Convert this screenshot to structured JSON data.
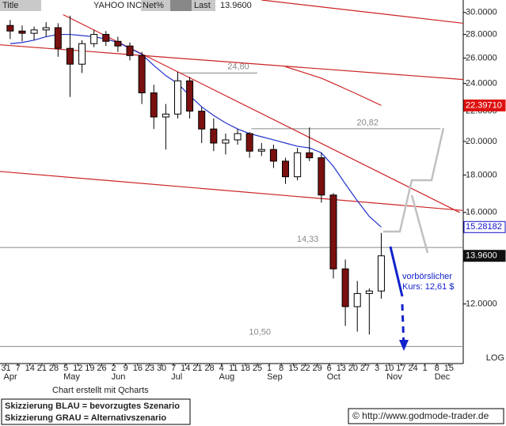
{
  "header": {
    "title": "Title",
    "symbol": "YAHOO INC",
    "net_label": "Net%",
    "last_label": "Last",
    "last": "13.9600"
  },
  "chart_data": {
    "type": "candlestick",
    "log_scale": true,
    "categories": [
      "31",
      "7",
      "14",
      "21",
      "28",
      "5",
      "12",
      "19",
      "26",
      "2",
      "9",
      "16",
      "23",
      "30",
      "7",
      "14",
      "21",
      "28",
      "4",
      "11",
      "18",
      "25",
      "1",
      "8",
      "15",
      "22",
      "29",
      "6",
      "13",
      "20",
      "27",
      "3",
      "10",
      "17",
      "24",
      "1",
      "8",
      "15"
    ],
    "month_labels": [
      "Apr",
      null,
      null,
      null,
      null,
      "May",
      null,
      null,
      null,
      "Jun",
      null,
      null,
      null,
      null,
      "Jul",
      null,
      null,
      null,
      "Aug",
      null,
      null,
      null,
      "Sep",
      null,
      null,
      null,
      null,
      "Oct",
      null,
      null,
      null,
      null,
      "Nov",
      null,
      null,
      null,
      "Dec",
      null
    ],
    "xlim": [
      -0.5,
      38.2
    ],
    "ylim": [
      9.95,
      31.2
    ],
    "yticks": [
      {
        "value": 30,
        "label": "30.0000"
      },
      {
        "value": 28,
        "label": "28.0000"
      },
      {
        "value": 26,
        "label": "26.0000"
      },
      {
        "value": 24,
        "label": "24.0000"
      },
      {
        "value": 22,
        "label": "22.0000"
      },
      {
        "value": 20,
        "label": "20.0000"
      },
      {
        "value": 18,
        "label": "18.0000"
      },
      {
        "value": 16,
        "label": "16.0000"
      },
      {
        "value": 12,
        "label": "12.0000"
      }
    ],
    "scale_label": "LOG",
    "series": [
      {
        "up_color": "#ffffff",
        "down_color": "#7a1010",
        "open": [
          28.8,
          28.3,
          28.1,
          28.4,
          28.6,
          26.8,
          25.5,
          27.2,
          28.0,
          27.4,
          27.0,
          26.2,
          23.3,
          21.6,
          21.8,
          24.2,
          22.0,
          20.8,
          19.9,
          20.1,
          20.5,
          19.4,
          19.5,
          18.8,
          17.9,
          19.3,
          19.0,
          16.9,
          13.4,
          11.9,
          12.4,
          12.5,
          null,
          null,
          null,
          null,
          null,
          null
        ],
        "high": [
          29.3,
          28.8,
          28.7,
          29.1,
          29.0,
          29.7,
          27.5,
          28.4,
          28.3,
          27.8,
          27.3,
          26.5,
          23.9,
          22.5,
          24.9,
          24.5,
          22.3,
          21.5,
          20.5,
          20.8,
          20.6,
          19.9,
          19.8,
          19.0,
          19.6,
          20.9,
          19.3,
          17.0,
          13.8,
          12.9,
          12.6,
          15.0,
          null,
          null,
          null,
          null,
          null,
          null
        ],
        "low": [
          27.6,
          27.4,
          27.5,
          27.8,
          26.1,
          23.0,
          24.8,
          26.9,
          27.0,
          26.5,
          25.8,
          22.5,
          20.8,
          19.5,
          21.5,
          21.5,
          19.9,
          19.4,
          19.2,
          19.8,
          19.0,
          19.1,
          18.4,
          17.5,
          17.7,
          18.8,
          16.5,
          13.0,
          11.2,
          11.0,
          10.9,
          12.2,
          null,
          null,
          null,
          null,
          null,
          null
        ],
        "close": [
          28.3,
          28.1,
          28.4,
          28.6,
          26.8,
          25.5,
          27.2,
          28.0,
          27.4,
          27.0,
          26.2,
          23.3,
          21.6,
          21.8,
          24.2,
          22.0,
          20.8,
          19.9,
          20.1,
          20.5,
          19.4,
          19.5,
          18.8,
          17.9,
          19.3,
          19.0,
          16.9,
          13.4,
          11.9,
          12.4,
          12.5,
          13.96,
          null,
          null,
          null,
          null,
          null,
          null
        ]
      }
    ],
    "overlays": [
      {
        "color": "#2233cc",
        "values": [
          27.2,
          27.3,
          27.5,
          27.8,
          28.0,
          28.0,
          27.9,
          27.8,
          27.6,
          27.3,
          26.8,
          26.3,
          25.4,
          24.6,
          24.0,
          23.1,
          22.3,
          21.7,
          21.2,
          20.8,
          20.5,
          20.3,
          20.1,
          19.9,
          19.7,
          19.6,
          19.3,
          18.5,
          17.5,
          16.6,
          15.8,
          15.28,
          null,
          null,
          null,
          null,
          null,
          null
        ]
      },
      {
        "color": "#cc2222",
        "values": [
          null,
          null,
          null,
          null,
          null,
          null,
          null,
          null,
          null,
          null,
          null,
          null,
          null,
          null,
          null,
          null,
          null,
          null,
          null,
          null,
          null,
          null,
          null,
          25.3,
          25.0,
          24.7,
          24.4,
          24.0,
          23.6,
          23.2,
          22.8,
          22.4,
          null,
          null,
          null,
          null,
          null,
          null
        ]
      }
    ],
    "trendlines": [
      {
        "color": "#cc2222",
        "x": [
          21.35,
          38.2
        ],
        "y": [
          31.2,
          29.0
        ]
      },
      {
        "color": "#cc2222",
        "x": [
          -0.5,
          38.2
        ],
        "y": [
          27.1,
          24.3
        ]
      },
      {
        "color": "#cc2222",
        "x": [
          4.77,
          37.9
        ],
        "y": [
          29.8,
          16.0
        ]
      },
      {
        "color": "#cc2222",
        "x": [
          -0.5,
          38.2
        ],
        "y": [
          18.2,
          16.1
        ]
      }
    ],
    "levels": [
      {
        "value": 24.8,
        "label": "24,80"
      },
      {
        "value": 20.82,
        "label": "20,82"
      },
      {
        "value": 14.33,
        "label": "14,33"
      },
      {
        "value": 10.5,
        "label": "10,50"
      }
    ],
    "price_tags": [
      {
        "value": 22.3971,
        "label": "22.39710",
        "color": "#dd1111"
      },
      {
        "value": 15.28182,
        "label": "15.28182",
        "color": "#1111cc"
      },
      {
        "value": 13.96,
        "label": "13.9600",
        "color": "#111111"
      }
    ],
    "annotation": "vorbörslicher\nKurs:  12,61 $"
  },
  "footer": {
    "credit": "Chart erstellt mit Qcharts",
    "legend": [
      "Skizzierung BLAU = bevorzugtes Szenario",
      "Skizzierung GRAU = Alternativszenario"
    ],
    "url": "© http://www.godmode-trader.de"
  }
}
